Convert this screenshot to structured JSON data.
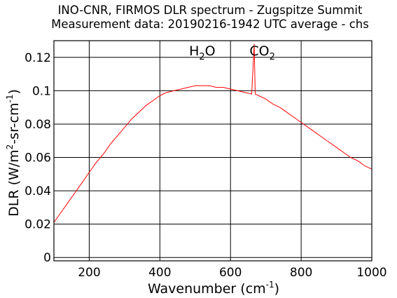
{
  "chart_data": {
    "type": "line",
    "title": "INO-CNR, FIRMOS DLR spectrum - Zugspitze Summit",
    "subtitle": "Measurement data: 20190216-1942 UTC average - chs",
    "xlabel": {
      "text": "Wavenumber (cm",
      "sup": "-1",
      "tail": ")"
    },
    "ylabel": {
      "text": "DLR (W/m",
      "sup1": "2",
      "mid": "-sr-cm",
      "sup2": "-1",
      "tail": ")"
    },
    "xlim": [
      100,
      1000
    ],
    "ylim": [
      -0.002,
      0.13
    ],
    "xticks": [
      200,
      400,
      600,
      800,
      1000
    ],
    "xtick_labels": [
      "200",
      "400",
      "600",
      "800",
      "1000"
    ],
    "yticks": [
      0,
      0.02,
      0.04,
      0.06,
      0.08,
      0.1,
      0.12
    ],
    "ytick_labels": [
      "0",
      "0.02",
      "0.04",
      "0.06",
      "0.08",
      "0.1",
      "0.12"
    ],
    "grid": true,
    "series_color": "#ff0000",
    "annotations": [
      {
        "main": "H",
        "sub": "2",
        "tail": "O",
        "x": 520
      },
      {
        "main": "CO",
        "sub": "2",
        "tail": "",
        "x": 690
      }
    ],
    "series": [
      {
        "x": [
          100,
          120,
          140,
          160,
          180,
          200,
          220,
          240,
          260,
          280,
          300,
          320,
          340,
          360,
          380,
          400,
          420,
          440,
          460,
          480,
          500,
          520,
          540,
          560,
          580,
          600,
          620,
          640,
          660,
          667,
          670,
          680,
          700,
          720,
          740,
          760,
          780,
          800,
          820,
          840,
          860,
          880,
          900,
          920,
          940,
          960,
          980,
          1000
        ],
        "y": [
          0.021,
          0.027,
          0.033,
          0.039,
          0.045,
          0.051,
          0.057,
          0.062,
          0.068,
          0.073,
          0.078,
          0.083,
          0.087,
          0.091,
          0.094,
          0.097,
          0.099,
          0.1,
          0.101,
          0.102,
          0.103,
          0.103,
          0.103,
          0.102,
          0.102,
          0.101,
          0.1,
          0.099,
          0.098,
          0.128,
          0.098,
          0.097,
          0.095,
          0.092,
          0.09,
          0.087,
          0.084,
          0.081,
          0.078,
          0.075,
          0.072,
          0.069,
          0.066,
          0.063,
          0.06,
          0.058,
          0.055,
          0.053
        ]
      }
    ]
  }
}
